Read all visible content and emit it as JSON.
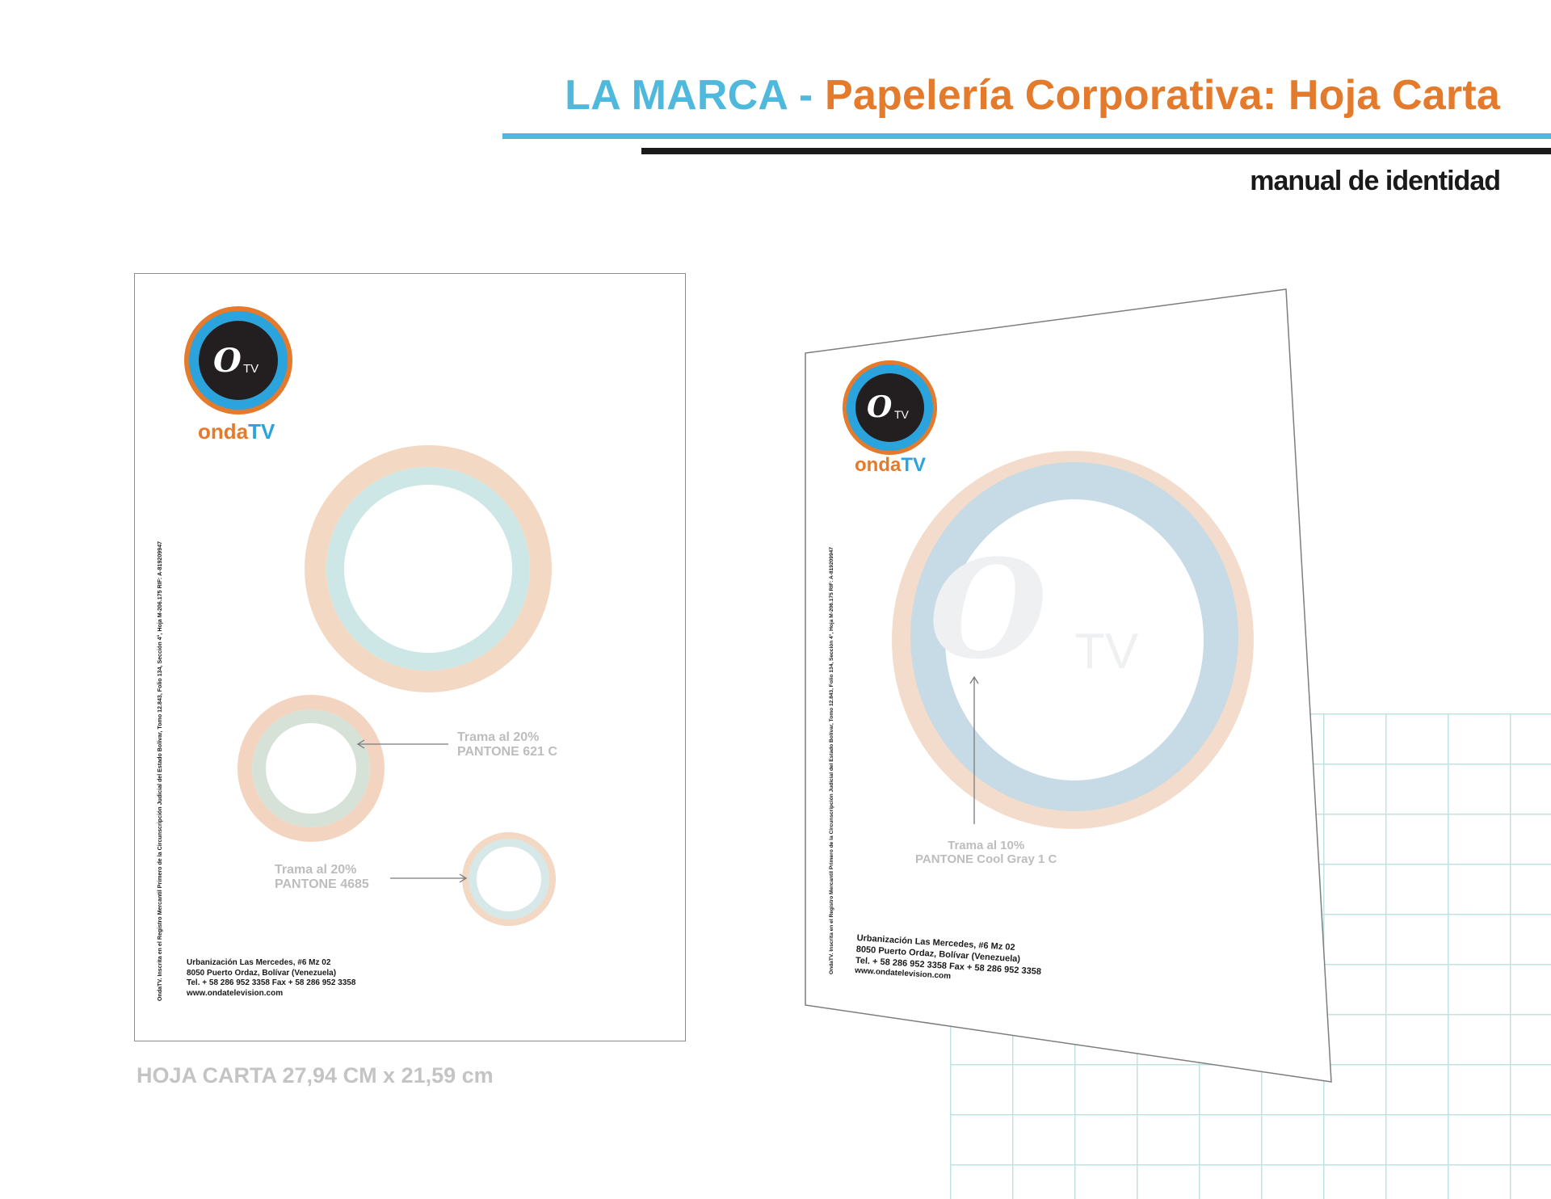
{
  "header": {
    "title_part1": "LA MARCA",
    "title_separator": " - ",
    "title_part2": "Papelería Corporativa: Hoja Carta",
    "subtitle": "manual de identidad"
  },
  "brand": {
    "logo_mark": "O",
    "logo_tv": "TV",
    "wordmark_part1": "onda",
    "wordmark_part2": "TV",
    "watermark_mark": "O",
    "watermark_tv": "TV",
    "colors": {
      "orange": "#e47a2b",
      "blue": "#2ba3dc",
      "dark": "#231f20",
      "title_blue": "#4fb8dd"
    }
  },
  "sheet_flat": {
    "legal_text": "OndaTV. Inscrita en el Registro Mercantil Primero de la Circunscripción Judicial del Estado Bolívar, Tomo 12.843, Folio 134, Sección 4°, Hoja M-206.175  RIF: A-819209947",
    "notes": [
      {
        "line1": "Trama al 20%",
        "line2": "PANTONE 621 C"
      },
      {
        "line1": "Trama al 20%",
        "line2": "PANTONE 4685"
      }
    ],
    "address": {
      "line1": "Urbanización Las Mercedes, #6 Mz 02",
      "line2": "8050 Puerto Ordaz, Bolívar (Venezuela)",
      "line3": "Tel. + 58 286 952 3358 Fax + 58 286 952 3358",
      "line4": "www.ondatelevision.com"
    }
  },
  "sheet_perspective": {
    "legal_text": "OndaTV. Inscrita en el Registro Mercantil Primero de la Circunscripción Judicial del Estado Bolívar, Tomo 12.843, Folio 134, Sección 4°, Hoja M-206.175  RIF: A-819209947",
    "note": {
      "line1": "Trama al 10%",
      "line2": "PANTONE Cool Gray 1 C"
    },
    "address": {
      "line1": "Urbanización Las Mercedes, #6 Mz 02",
      "line2": "8050 Puerto Ordaz, Bolívar (Venezuela)",
      "line3": "Tel. + 58 286 952 3358 Fax + 58 286 952 3358",
      "line4": "www.ondatelevision.com"
    }
  },
  "caption": "HOJA CARTA 27,94 CM x 21,59 cm"
}
